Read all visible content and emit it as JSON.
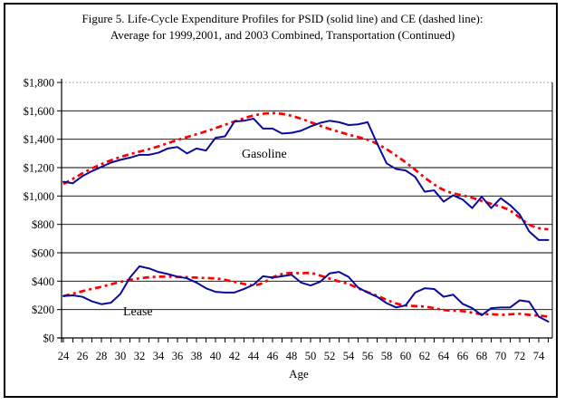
{
  "figure": {
    "title_line1": "Figure 5. Life-Cycle Expenditure Profiles for PSID (solid line) and CE (dashed line):",
    "title_line2": "Average for 1999,2001, and 2003 Combined, Transportation (Continued)"
  },
  "colors": {
    "psid_line": "#0a0a9b",
    "ce_line": "#fb0000",
    "grid": "#000000",
    "top_gridline": "#a8a8a8"
  },
  "chart_data": {
    "type": "line",
    "title": "Figure 5. Life-Cycle Expenditure Profiles for PSID (solid line) and CE (dashed line): Average for 1999,2001, and 2003 Combined, Transportation (Continued)",
    "xlabel": "Age",
    "ylabel": "",
    "xlim": [
      24,
      75
    ],
    "ylim": [
      0,
      1800
    ],
    "ytick_step": 200,
    "ytick_labels": [
      "$0",
      "$200",
      "$400",
      "$600",
      "$800",
      "$1,000",
      "$1,200",
      "$1,400",
      "$1,600",
      "$1,800"
    ],
    "xtick_labels": [
      "24",
      "26",
      "28",
      "30",
      "32",
      "34",
      "36",
      "38",
      "40",
      "42",
      "44",
      "46",
      "48",
      "50",
      "52",
      "54",
      "56",
      "58",
      "60",
      "62",
      "64",
      "66",
      "68",
      "70",
      "72",
      "74"
    ],
    "grid": true,
    "legend_position": "none",
    "x": [
      24,
      25,
      26,
      27,
      28,
      29,
      30,
      31,
      32,
      33,
      34,
      35,
      36,
      37,
      38,
      39,
      40,
      41,
      42,
      43,
      44,
      45,
      46,
      47,
      48,
      49,
      50,
      51,
      52,
      53,
      54,
      55,
      56,
      57,
      58,
      59,
      60,
      61,
      62,
      63,
      64,
      65,
      66,
      67,
      68,
      69,
      70,
      71,
      72,
      73,
      74,
      75
    ],
    "series": [
      {
        "name": "PSID Gasoline",
        "source": "PSID (solid line)",
        "style": "solid",
        "color": "#0a0a9b",
        "values": [
          1100,
          1090,
          1140,
          1175,
          1205,
          1235,
          1255,
          1270,
          1290,
          1290,
          1305,
          1335,
          1345,
          1300,
          1335,
          1320,
          1410,
          1420,
          1525,
          1530,
          1545,
          1475,
          1475,
          1440,
          1445,
          1460,
          1490,
          1515,
          1530,
          1520,
          1500,
          1505,
          1520,
          1370,
          1230,
          1190,
          1180,
          1135,
          1030,
          1040,
          960,
          1005,
          975,
          915,
          995,
          915,
          985,
          935,
          870,
          750,
          690,
          690
        ]
      },
      {
        "name": "CE Gasoline",
        "source": "CE (dashed line)",
        "style": "dashed",
        "color": "#fb0000",
        "values": [
          1085,
          1120,
          1160,
          1195,
          1225,
          1252,
          1275,
          1295,
          1312,
          1330,
          1350,
          1372,
          1395,
          1415,
          1435,
          1455,
          1478,
          1502,
          1525,
          1548,
          1568,
          1580,
          1585,
          1580,
          1565,
          1545,
          1520,
          1495,
          1472,
          1452,
          1432,
          1415,
          1398,
          1368,
          1330,
          1285,
          1238,
          1185,
          1130,
          1080,
          1040,
          1018,
          1005,
          988,
          965,
          945,
          925,
          900,
          848,
          795,
          772,
          765
        ]
      },
      {
        "name": "PSID Lease",
        "source": "PSID (solid line)",
        "style": "solid",
        "color": "#0a0a9b",
        "values": [
          295,
          300,
          290,
          258,
          238,
          248,
          310,
          425,
          505,
          490,
          465,
          450,
          432,
          420,
          390,
          350,
          325,
          320,
          320,
          345,
          375,
          435,
          425,
          435,
          445,
          390,
          370,
          395,
          455,
          465,
          430,
          355,
          320,
          290,
          245,
          215,
          230,
          320,
          350,
          345,
          290,
          305,
          240,
          210,
          160,
          210,
          215,
          215,
          265,
          255,
          150,
          115
        ]
      },
      {
        "name": "CE Lease",
        "source": "CE (dashed line)",
        "style": "dashed",
        "color": "#fb0000",
        "values": [
          295,
          312,
          330,
          346,
          360,
          378,
          395,
          410,
          420,
          428,
          432,
          432,
          430,
          428,
          425,
          422,
          420,
          410,
          395,
          380,
          368,
          385,
          428,
          452,
          460,
          455,
          460,
          440,
          418,
          398,
          382,
          350,
          322,
          298,
          268,
          242,
          228,
          224,
          222,
          210,
          196,
          192,
          190,
          178,
          166,
          168,
          162,
          166,
          172,
          162,
          158,
          150
        ]
      }
    ],
    "annotations": [
      {
        "text": "Gasoline",
        "near_age": 45,
        "near_value": 1250
      },
      {
        "text": "Lease",
        "near_age": 31,
        "near_value": 155
      }
    ]
  }
}
